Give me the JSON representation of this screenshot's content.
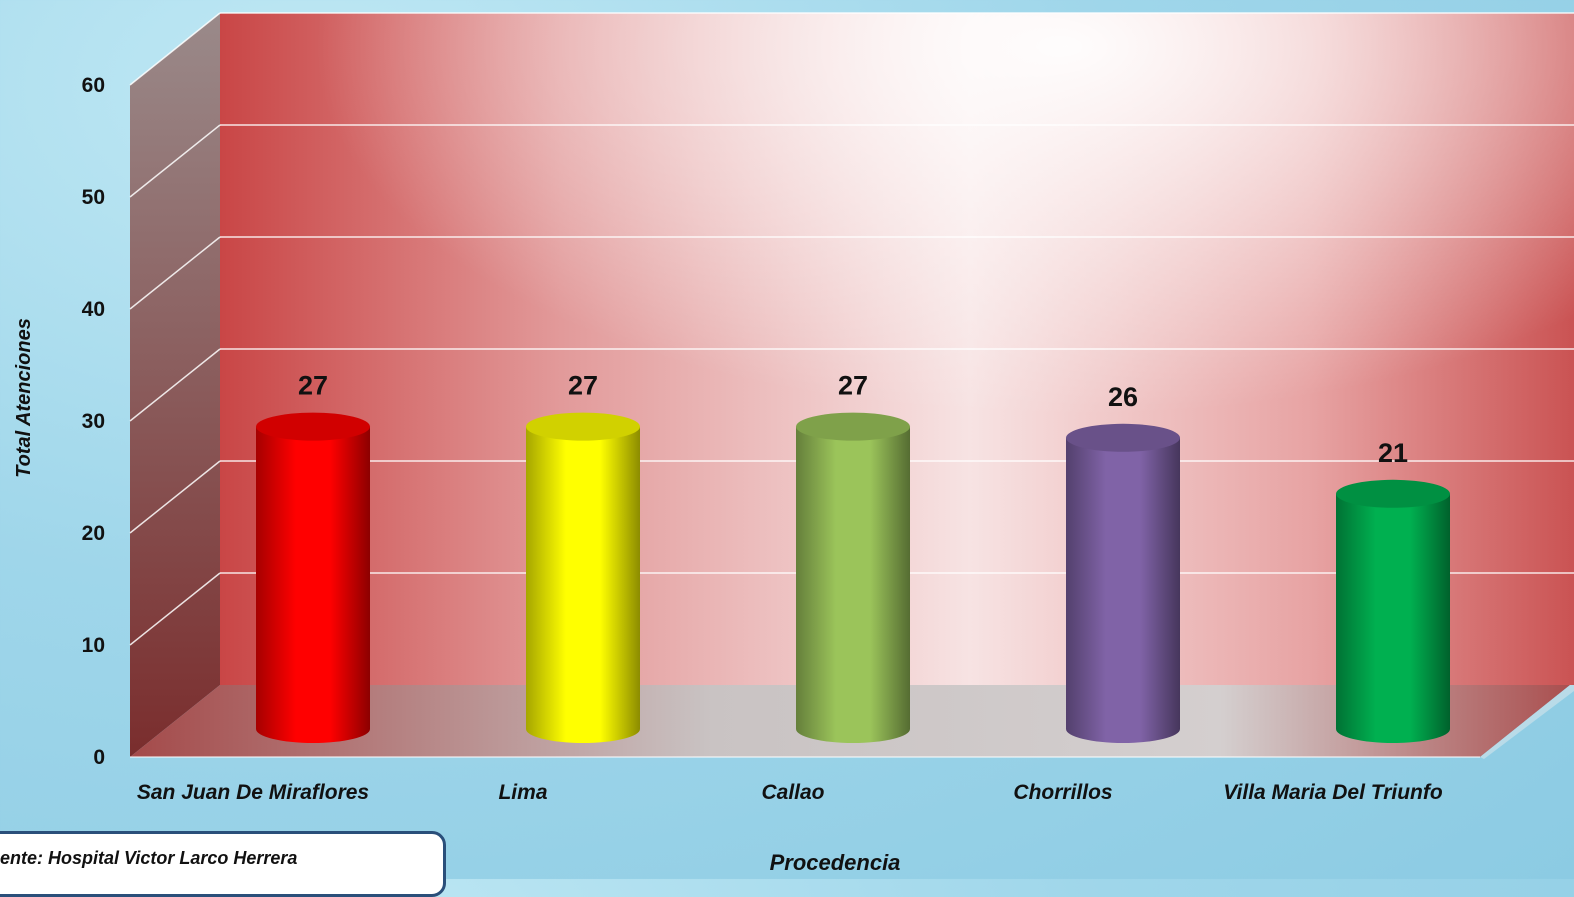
{
  "chart_data": {
    "type": "bar",
    "categories": [
      "San Juan De Miraflores",
      "Lima",
      "Callao",
      "Chorrillos",
      "Villa Maria Del Triunfo"
    ],
    "values": [
      27,
      27,
      27,
      26,
      21
    ],
    "data_labels": [
      "27",
      "27",
      "27",
      "26",
      "21"
    ],
    "colors": [
      "#ff0000",
      "#ffff00",
      "#9bc45a",
      "#8063a7",
      "#00b050"
    ],
    "title": "",
    "xlabel": "Procedencia",
    "ylabel": "Total Atenciones",
    "ylim": [
      0,
      60
    ],
    "yticks": [
      "0",
      "10",
      "20",
      "30",
      "40",
      "50",
      "60"
    ],
    "grid": true,
    "style": "3d-cylinder"
  },
  "source_note": "ente:  Hospital Victor Larco Herrera"
}
